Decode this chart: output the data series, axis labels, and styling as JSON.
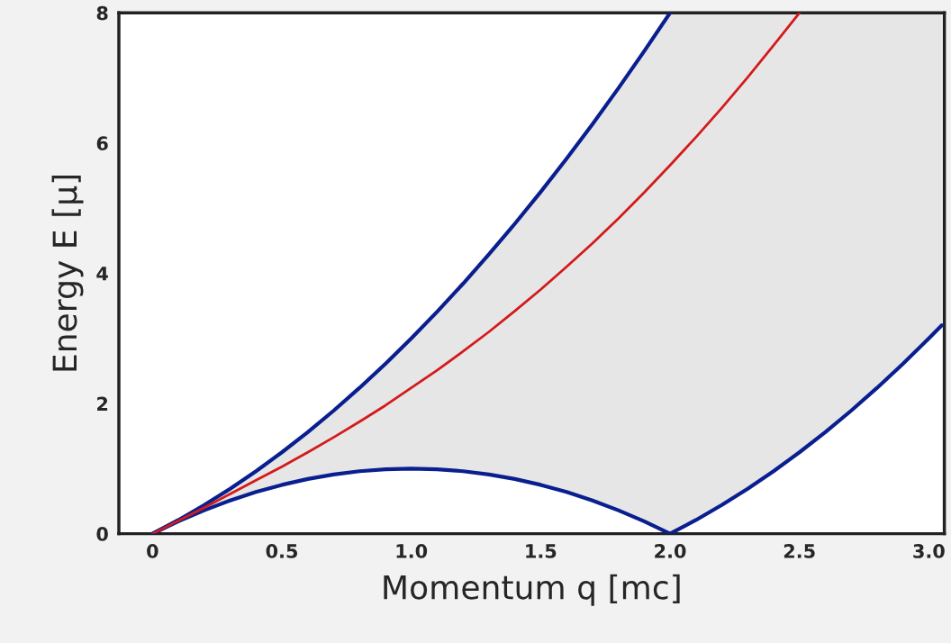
{
  "chart_data": {
    "type": "line",
    "xlabel": "Momentum q [mc]",
    "ylabel": "Energy E [μ]",
    "x": [
      0,
      0.1,
      0.2,
      0.3,
      0.4,
      0.5,
      0.6,
      0.7,
      0.8,
      0.9,
      1.0,
      1.1,
      1.2,
      1.3,
      1.4,
      1.5,
      1.6,
      1.7,
      1.8,
      1.9,
      2.0,
      2.1,
      2.2,
      2.3,
      2.4,
      2.5,
      2.6,
      2.7,
      2.8,
      2.9,
      3.0,
      3.05
    ],
    "series": [
      {
        "color": "#0a1f8f",
        "values": [
          0,
          0.21,
          0.44,
          0.69,
          0.96,
          1.25,
          1.56,
          1.89,
          2.24,
          2.61,
          3.0,
          3.41,
          3.84,
          4.29,
          4.76,
          5.25,
          5.76,
          6.29,
          6.84,
          7.41,
          8.0,
          null,
          null,
          null,
          null,
          null,
          null,
          null,
          null,
          null,
          null,
          null
        ],
        "lower": [
          0,
          0.19,
          0.36,
          0.51,
          0.64,
          0.75,
          0.84,
          0.91,
          0.96,
          0.99,
          1.0,
          0.99,
          0.96,
          0.91,
          0.84,
          0.75,
          0.64,
          0.51,
          0.36,
          0.19,
          0,
          0.21,
          0.44,
          0.69,
          0.96,
          1.25,
          1.56,
          1.89,
          2.24,
          2.61,
          3.0,
          3.2
        ],
        "upper": [
          0,
          0.21,
          0.44,
          0.69,
          0.96,
          1.25,
          1.56,
          1.89,
          2.24,
          2.61,
          3.0,
          3.41,
          3.84,
          4.29,
          4.76,
          5.25,
          5.76,
          6.29,
          6.84,
          7.41,
          8.0,
          8,
          8,
          8,
          8,
          8,
          8,
          8,
          8,
          8,
          8,
          8
        ]
      },
      {
        "color": "#0a1f8f",
        "values": [
          0,
          0.19,
          0.36,
          0.51,
          0.64,
          0.75,
          0.84,
          0.91,
          0.96,
          0.99,
          1.0,
          0.99,
          0.96,
          0.91,
          0.84,
          0.75,
          0.64,
          0.51,
          0.36,
          0.19,
          0,
          0.21,
          0.44,
          0.69,
          0.96,
          1.25,
          1.56,
          1.89,
          2.24,
          2.61,
          3.0,
          3.2
        ]
      },
      {
        "color": "#d41a1a",
        "values": [
          0,
          0.2,
          0.4,
          0.61,
          0.82,
          1.03,
          1.25,
          1.48,
          1.72,
          1.97,
          2.24,
          2.51,
          2.8,
          3.1,
          3.42,
          3.75,
          4.1,
          4.46,
          4.84,
          5.24,
          5.66,
          6.09,
          6.54,
          7.01,
          7.5,
          8.0,
          null,
          null,
          null,
          null,
          null,
          null
        ]
      }
    ],
    "xlim": [
      -0.13,
      3.06
    ],
    "ylim": [
      0,
      8
    ],
    "xticks": [
      0,
      0.5,
      {
        "value": 1,
        "label": "1.0"
      },
      1.5,
      {
        "value": 2,
        "label": "2.0"
      },
      2.5,
      {
        "value": 3,
        "label": "3.0"
      }
    ],
    "yticks": [
      0,
      2,
      4,
      6,
      8
    ],
    "grid": false,
    "legend": false
  }
}
